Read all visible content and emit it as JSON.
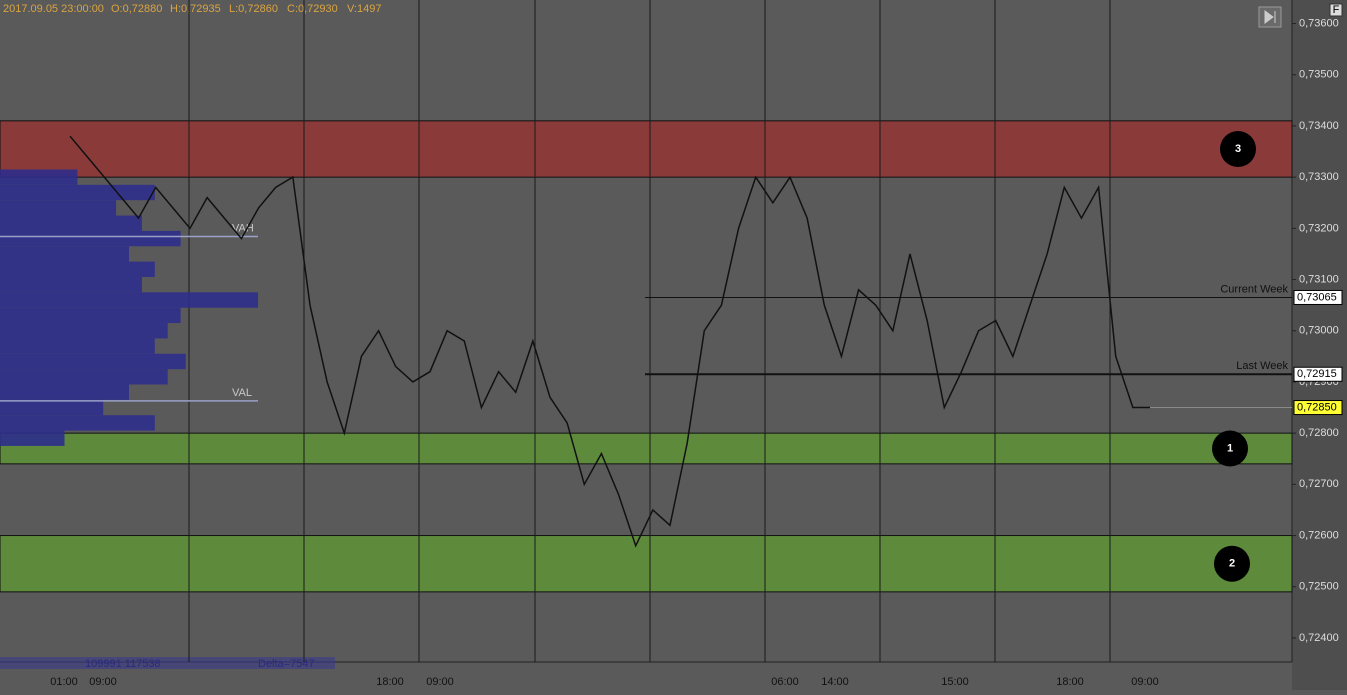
{
  "header": {
    "datetime": "2017.09.05 23:00:00",
    "open": "O:0,72880",
    "high": "H:0,72935",
    "low": "L:0,72860",
    "close": "C:0,72930",
    "volume": "V:1497"
  },
  "chart_data": {
    "type": "line",
    "color": "#111111",
    "values": [
      0.7338,
      0.7334,
      0.733,
      0.7326,
      0.7322,
      0.7328,
      0.7324,
      0.732,
      0.7326,
      0.7322,
      0.7318,
      0.7324,
      0.7328,
      0.733,
      0.7305,
      0.729,
      0.728,
      0.7295,
      0.73,
      0.7293,
      0.729,
      0.7292,
      0.73,
      0.7298,
      0.7285,
      0.7292,
      0.7288,
      0.7298,
      0.7287,
      0.7282,
      0.727,
      0.7276,
      0.7268,
      0.7258,
      0.7265,
      0.7262,
      0.7278,
      0.73,
      0.7305,
      0.732,
      0.733,
      0.7325,
      0.733,
      0.7322,
      0.7305,
      0.7295,
      0.7308,
      0.7305,
      0.73,
      0.7315,
      0.7302,
      0.7285,
      0.7292,
      0.73,
      0.7302,
      0.7295,
      0.7305,
      0.7315,
      0.7328,
      0.7322,
      0.7328,
      0.7295,
      0.7285,
      0.7285
    ],
    "ylim": [
      0.72353,
      0.73646
    ],
    "yticks": [
      {
        "value": 0.724,
        "label": "0,72400"
      },
      {
        "value": 0.725,
        "label": "0,72500"
      },
      {
        "value": 0.726,
        "label": "0,72600"
      },
      {
        "value": 0.727,
        "label": "0,72700"
      },
      {
        "value": 0.728,
        "label": "0,72800"
      },
      {
        "value": 0.729,
        "label": "0,72900"
      },
      {
        "value": 0.73,
        "label": "0,73000"
      },
      {
        "value": 0.731,
        "label": "0,73100"
      },
      {
        "value": 0.732,
        "label": "0,73200"
      },
      {
        "value": 0.733,
        "label": "0,73300"
      },
      {
        "value": 0.734,
        "label": "0,73400"
      },
      {
        "value": 0.735,
        "label": "0,73500"
      },
      {
        "value": 0.736,
        "label": "0,73600"
      }
    ],
    "xlabels": [
      "01:00",
      "09:00",
      "18:00",
      "09:00",
      "06:00",
      "14:00",
      "15:00",
      "18:00",
      "09:00"
    ],
    "zones": [
      {
        "label": "3",
        "from": 0.733,
        "to": 0.7341,
        "color": "#8b3a3a"
      },
      {
        "label": "1",
        "from": 0.7274,
        "to": 0.728,
        "color": "#5e8a3c"
      },
      {
        "label": "2",
        "from": 0.7249,
        "to": 0.726,
        "color": "#5e8a3c"
      }
    ],
    "price_lines": [
      {
        "name": "Current Week",
        "value": 0.73065,
        "label": "0,73065"
      },
      {
        "name": "Last Week",
        "value": 0.72915,
        "label": "0,72915"
      }
    ],
    "last_price": {
      "value": 0.7285,
      "label": "0,72850"
    },
    "value_area": [
      {
        "name": "VAH",
        "value": 0.73184
      },
      {
        "name": "VAL",
        "value": 0.72863
      }
    ],
    "volume_profile": {
      "levels": [
        0.733,
        0.7327,
        0.7324,
        0.7321,
        0.7318,
        0.7315,
        0.7312,
        0.7309,
        0.7306,
        0.7303,
        0.73,
        0.7297,
        0.7294,
        0.7291,
        0.7288,
        0.7285,
        0.7282,
        0.7279
      ],
      "values": [
        30,
        60,
        45,
        55,
        70,
        50,
        60,
        55,
        100,
        70,
        65,
        60,
        72,
        65,
        50,
        40,
        60,
        25
      ]
    },
    "footer": {
      "volumes": "109991 117538",
      "delta": "Delta=7547"
    }
  }
}
